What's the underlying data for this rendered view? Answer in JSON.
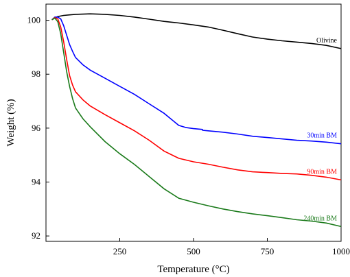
{
  "chart_data": {
    "type": "line",
    "title": "",
    "xlabel": "Temperature (°C)",
    "ylabel": "Weight (%)",
    "xlim": [
      0,
      1000
    ],
    "ylim": [
      91.8,
      100.6
    ],
    "xticks": [
      250,
      500,
      750,
      1000
    ],
    "yticks": [
      92,
      94,
      96,
      98,
      100
    ],
    "grid": false,
    "legend": "none",
    "series": [
      {
        "name": "Olivine",
        "color": "#000000",
        "x": [
          20,
          40,
          60,
          80,
          100,
          150,
          200,
          250,
          300,
          350,
          400,
          450,
          500,
          550,
          600,
          650,
          700,
          750,
          800,
          850,
          900,
          950,
          1000
        ],
        "y": [
          100.02,
          100.14,
          100.18,
          100.2,
          100.22,
          100.24,
          100.22,
          100.18,
          100.12,
          100.04,
          99.96,
          99.9,
          99.83,
          99.75,
          99.63,
          99.5,
          99.38,
          99.3,
          99.24,
          99.19,
          99.14,
          99.07,
          98.95
        ]
      },
      {
        "name": "30min BM",
        "color": "#0000ff",
        "x": [
          20,
          30,
          40,
          50,
          60,
          70,
          80,
          90,
          100,
          125,
          150,
          200,
          250,
          300,
          350,
          400,
          450,
          475,
          500,
          530,
          531,
          550,
          600,
          650,
          700,
          750,
          800,
          850,
          900,
          950,
          1000
        ],
        "y": [
          100.02,
          100.12,
          100.12,
          100.05,
          99.8,
          99.45,
          99.1,
          98.85,
          98.62,
          98.35,
          98.15,
          97.85,
          97.55,
          97.25,
          96.9,
          96.55,
          96.1,
          96.02,
          95.98,
          95.95,
          95.92,
          95.9,
          95.85,
          95.78,
          95.7,
          95.65,
          95.6,
          95.55,
          95.52,
          95.48,
          95.42
        ]
      },
      {
        "name": "90min BM",
        "color": "#ff0000",
        "x": [
          20,
          30,
          40,
          50,
          60,
          70,
          80,
          90,
          100,
          125,
          150,
          200,
          250,
          300,
          350,
          400,
          450,
          500,
          550,
          600,
          650,
          700,
          750,
          800,
          850,
          900,
          950,
          1000
        ],
        "y": [
          100.02,
          100.1,
          100.05,
          99.75,
          99.2,
          98.55,
          97.95,
          97.6,
          97.35,
          97.05,
          96.82,
          96.5,
          96.2,
          95.9,
          95.55,
          95.15,
          94.88,
          94.75,
          94.66,
          94.55,
          94.45,
          94.38,
          94.35,
          94.32,
          94.3,
          94.25,
          94.18,
          94.08
        ]
      },
      {
        "name": "240min BM",
        "color": "#1a7a1a",
        "x": [
          20,
          30,
          40,
          50,
          60,
          70,
          80,
          90,
          100,
          125,
          150,
          200,
          250,
          300,
          350,
          400,
          450,
          500,
          550,
          600,
          650,
          700,
          750,
          800,
          850,
          900,
          950,
          1000
        ],
        "y": [
          100.02,
          100.08,
          99.95,
          99.5,
          98.8,
          98.1,
          97.55,
          97.1,
          96.75,
          96.35,
          96.05,
          95.5,
          95.05,
          94.65,
          94.2,
          93.75,
          93.4,
          93.25,
          93.12,
          93.0,
          92.9,
          92.82,
          92.75,
          92.68,
          92.6,
          92.55,
          92.48,
          92.35
        ]
      }
    ]
  }
}
